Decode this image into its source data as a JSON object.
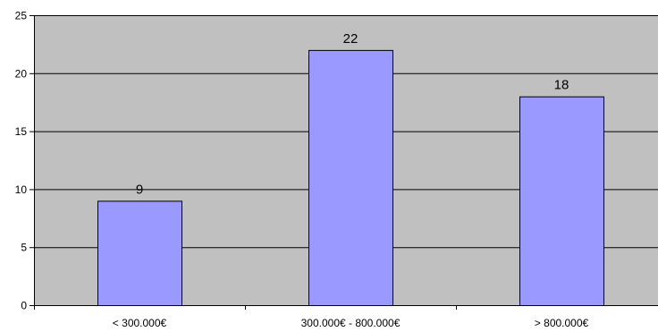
{
  "chart_data": {
    "type": "bar",
    "categories": [
      "< 300.000€",
      "300.000€ - 800.000€",
      "> 800.000€"
    ],
    "values": [
      9,
      22,
      18
    ],
    "data_labels": [
      "9",
      "22",
      "18"
    ],
    "ylim": [
      0,
      25
    ],
    "yticks": [
      0,
      5,
      10,
      15,
      20,
      25
    ],
    "ytick_labels": [
      "0",
      "5",
      "10",
      "15",
      "20",
      "25"
    ],
    "grid": true,
    "legend": "none",
    "plot_background": "#c0c0c0",
    "bar_color": "#9999ff",
    "bar_edge_color": "#000000",
    "gridline_color": "#000000"
  }
}
